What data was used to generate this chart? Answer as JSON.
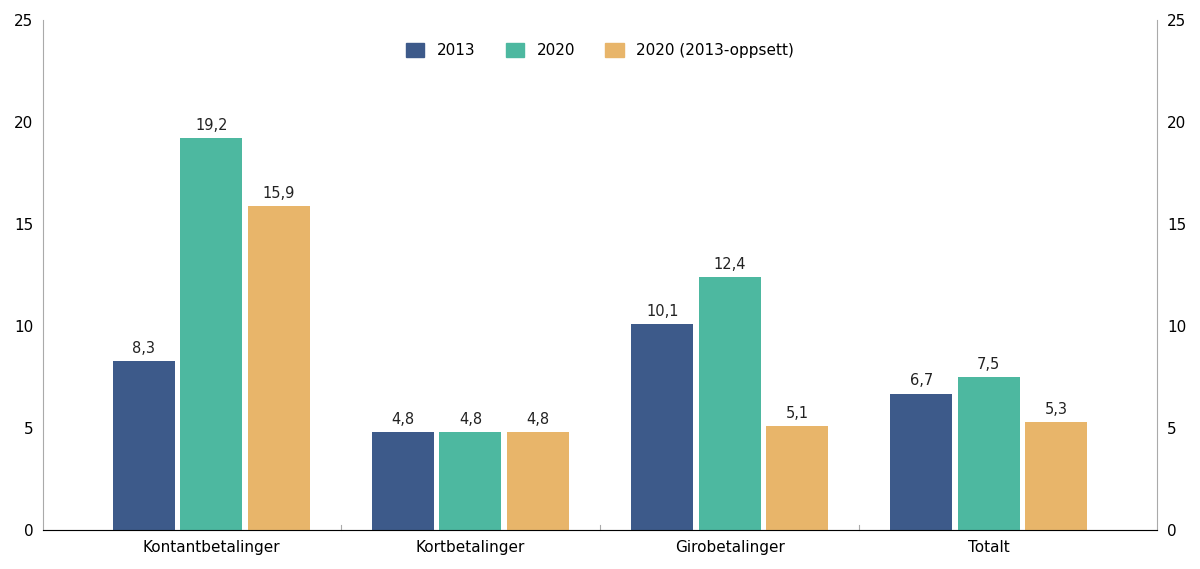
{
  "categories": [
    "Kontantbetalinger",
    "Kortbetalinger",
    "Girobetalinger",
    "Totalt"
  ],
  "series": {
    "2013": [
      8.3,
      4.8,
      10.1,
      6.7
    ],
    "2020": [
      19.2,
      4.8,
      12.4,
      7.5
    ],
    "2020 (2013-oppsett)": [
      15.9,
      4.8,
      5.1,
      5.3
    ]
  },
  "colors": {
    "2013": "#3d5a8a",
    "2020": "#4db8a0",
    "2020 (2013-oppsett)": "#e8b56a"
  },
  "legend_labels": [
    "2013",
    "2020",
    "2020 (2013-oppsett)"
  ],
  "ylim": [
    0,
    25
  ],
  "yticks": [
    0,
    5,
    10,
    15,
    20,
    25
  ],
  "bar_width": 0.26,
  "background_color": "#ffffff",
  "label_fontsize": 10.5,
  "tick_fontsize": 11,
  "legend_fontsize": 11
}
